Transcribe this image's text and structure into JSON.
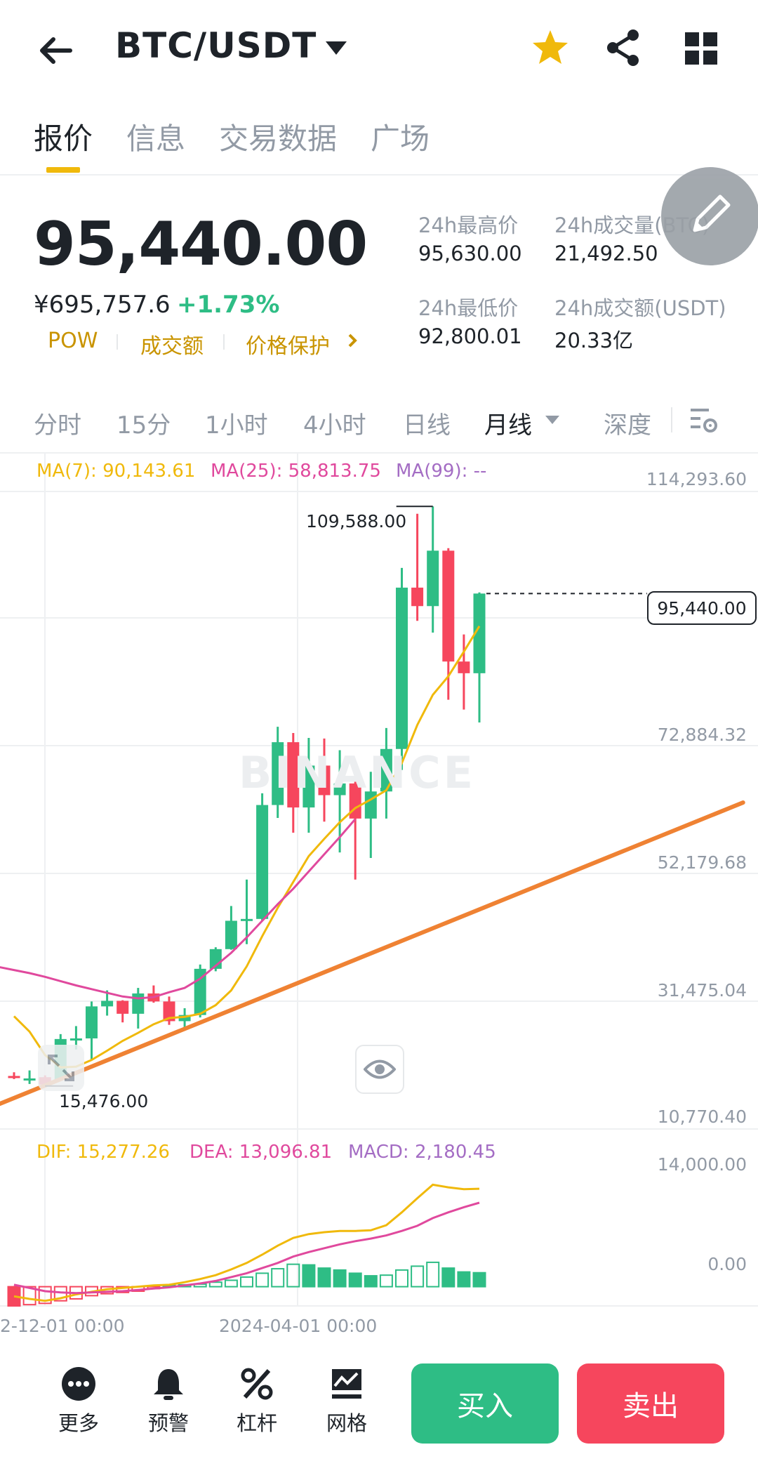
{
  "header": {
    "pair": "BTC/USDT",
    "tabs": [
      {
        "label": "报价",
        "active": true
      },
      {
        "label": "信息",
        "active": false
      },
      {
        "label": "交易数据",
        "active": false
      },
      {
        "label": "广场",
        "active": false
      }
    ]
  },
  "ticker": {
    "last_price": "95,440.00",
    "cny_price": "¥695,757.6",
    "change_pct": "+1.73%",
    "tags": [
      "POW",
      "成交额",
      "价格保护"
    ],
    "stats": {
      "high_label": "24h最高价",
      "high_value": "95,630.00",
      "vol_btc_label": "24h成交量(BTC)",
      "vol_btc_value": "21,492.50",
      "low_label": "24h最低价",
      "low_value": "92,800.01",
      "vol_usdt_label": "24h成交额(USDT)",
      "vol_usdt_value": "20.33亿"
    }
  },
  "intervals": [
    {
      "label": "分时"
    },
    {
      "label": "15分"
    },
    {
      "label": "1小时"
    },
    {
      "label": "4小时"
    },
    {
      "label": "日线"
    },
    {
      "label": "月线",
      "active": true
    },
    {
      "label": "深度"
    }
  ],
  "indicators": {
    "ma7": "MA(7): 90,143.61",
    "ma25": "MA(25): 58,813.75",
    "ma99": "MA(99): --",
    "dif": "DIF: 15,277.26",
    "dea": "DEA: 13,096.81",
    "macd": "MACD: 2,180.45"
  },
  "price_axis": [
    "114,293.60",
    "72,884.32",
    "52,179.68",
    "31,475.04",
    "10,770.40"
  ],
  "macd_axis": [
    "14,000.00",
    "0.00"
  ],
  "annotations": {
    "high_marker": "109,588.00",
    "low_marker": "15,476.00",
    "current_price_tag": "95,440.00"
  },
  "time_axis": [
    "2-12-01 00:00",
    "2024-04-01 00:00"
  ],
  "watermark": "BINANCE",
  "chart_data": {
    "type": "candlestick",
    "interval": "月线",
    "y_range": [
      10770.4,
      114293.6
    ],
    "candles": [
      {
        "o": 17100,
        "h": 17700,
        "l": 16600,
        "c": 16900
      },
      {
        "o": 16600,
        "h": 18000,
        "l": 15800,
        "c": 16700
      },
      {
        "o": 16900,
        "h": 17200,
        "l": 15476,
        "c": 15700
      },
      {
        "o": 16500,
        "h": 23900,
        "l": 16400,
        "c": 23100
      },
      {
        "o": 23100,
        "h": 25200,
        "l": 21400,
        "c": 23200
      },
      {
        "o": 23200,
        "h": 29200,
        "l": 19600,
        "c": 28400
      },
      {
        "o": 28400,
        "h": 31000,
        "l": 26900,
        "c": 29300
      },
      {
        "o": 29300,
        "h": 29400,
        "l": 25800,
        "c": 27200
      },
      {
        "o": 27200,
        "h": 31400,
        "l": 24800,
        "c": 30500
      },
      {
        "o": 30500,
        "h": 31800,
        "l": 29000,
        "c": 29200
      },
      {
        "o": 29200,
        "h": 30000,
        "l": 25400,
        "c": 26000
      },
      {
        "o": 26000,
        "h": 28100,
        "l": 24900,
        "c": 27000
      },
      {
        "o": 27000,
        "h": 35200,
        "l": 26600,
        "c": 34500
      },
      {
        "o": 34500,
        "h": 38000,
        "l": 34100,
        "c": 37700
      },
      {
        "o": 37700,
        "h": 44700,
        "l": 37600,
        "c": 42300
      },
      {
        "o": 42300,
        "h": 49000,
        "l": 38500,
        "c": 42600
      },
      {
        "o": 42600,
        "h": 63000,
        "l": 42300,
        "c": 61100
      },
      {
        "o": 61100,
        "h": 73800,
        "l": 59000,
        "c": 71300
      },
      {
        "o": 71300,
        "h": 72800,
        "l": 56600,
        "c": 60700
      },
      {
        "o": 60700,
        "h": 72000,
        "l": 56600,
        "c": 67500
      },
      {
        "o": 67500,
        "h": 71900,
        "l": 58400,
        "c": 62700
      },
      {
        "o": 62700,
        "h": 70000,
        "l": 53400,
        "c": 64600
      },
      {
        "o": 64600,
        "h": 65100,
        "l": 49000,
        "c": 58900
      },
      {
        "o": 58900,
        "h": 66500,
        "l": 52500,
        "c": 63300
      },
      {
        "o": 63300,
        "h": 73600,
        "l": 58900,
        "c": 70200
      },
      {
        "o": 70200,
        "h": 99600,
        "l": 66800,
        "c": 96400
      },
      {
        "o": 96400,
        "h": 108400,
        "l": 91000,
        "c": 93400
      },
      {
        "o": 93400,
        "h": 109588,
        "l": 89100,
        "c": 102400
      },
      {
        "o": 102400,
        "h": 102800,
        "l": 78200,
        "c": 84400
      },
      {
        "o": 84400,
        "h": 88800,
        "l": 76600,
        "c": 82500
      },
      {
        "o": 82500,
        "h": 95630,
        "l": 74500,
        "c": 95440
      }
    ],
    "ma7": [
      26800,
      24300,
      20500,
      18500,
      18600,
      19700,
      21200,
      22800,
      24100,
      25500,
      26500,
      26700,
      27200,
      28600,
      31000,
      34900,
      39800,
      44400,
      48600,
      52800,
      55600,
      58300,
      60600,
      62000,
      63500,
      67900,
      74100,
      79000,
      82000,
      86000,
      90143.61
    ],
    "ma25": [
      34600,
      35000,
      35100,
      34800,
      34300,
      33800,
      33200,
      32500,
      31800,
      31200,
      30600,
      30000,
      29700,
      29900,
      30700,
      31400,
      32900,
      35000,
      37100,
      39600,
      42300,
      45000,
      47500,
      50300,
      53100,
      55900,
      58813.75
    ],
    "ma25_start_index": -4,
    "trend_line": {
      "from": {
        "index": -1,
        "value": 12500
      },
      "to": {
        "index": 47,
        "value": 61500
      }
    },
    "macd": {
      "y_range": [
        -3000,
        20000
      ],
      "hist": [
        -3000,
        -2800,
        -2600,
        -2200,
        -1900,
        -1400,
        -1100,
        -900,
        -700,
        -300,
        200,
        300,
        400,
        700,
        1000,
        1500,
        2100,
        2800,
        3500,
        3400,
        2900,
        2600,
        2100,
        1700,
        1800,
        2600,
        3200,
        3800,
        2900,
        2300,
        2180.45
      ],
      "dif": [
        -1500,
        -1900,
        -2200,
        -1800,
        -1200,
        -800,
        -400,
        -200,
        0,
        200,
        300,
        700,
        1200,
        1800,
        2700,
        3700,
        5000,
        6400,
        7600,
        8200,
        8500,
        8700,
        8700,
        8800,
        9600,
        11600,
        13800,
        15900,
        15500,
        15200,
        15277.26
      ],
      "dea": [
        300,
        -200,
        -700,
        -900,
        -1000,
        -900,
        -800,
        -700,
        -500,
        -300,
        -100,
        200,
        500,
        900,
        1500,
        2100,
        2900,
        3700,
        4700,
        5400,
        6000,
        6600,
        7100,
        7500,
        8000,
        8700,
        9500,
        10700,
        11600,
        12400,
        13096.81
      ]
    }
  },
  "bottom_nav": [
    {
      "label": "更多",
      "icon": "more-icon"
    },
    {
      "label": "预警",
      "icon": "bell-icon"
    },
    {
      "label": "杠杆",
      "icon": "percent-icon"
    },
    {
      "label": "网格",
      "icon": "grid-trading-icon"
    }
  ],
  "actions": {
    "buy": "买入",
    "sell": "卖出"
  },
  "colors": {
    "up": "#2ebd85",
    "down": "#f6465d",
    "ma7": "#f0b90b",
    "ma25": "#e0499d",
    "ma99": "#a46dc4",
    "trend": "#ef8233",
    "brand": "#f0b90b"
  }
}
